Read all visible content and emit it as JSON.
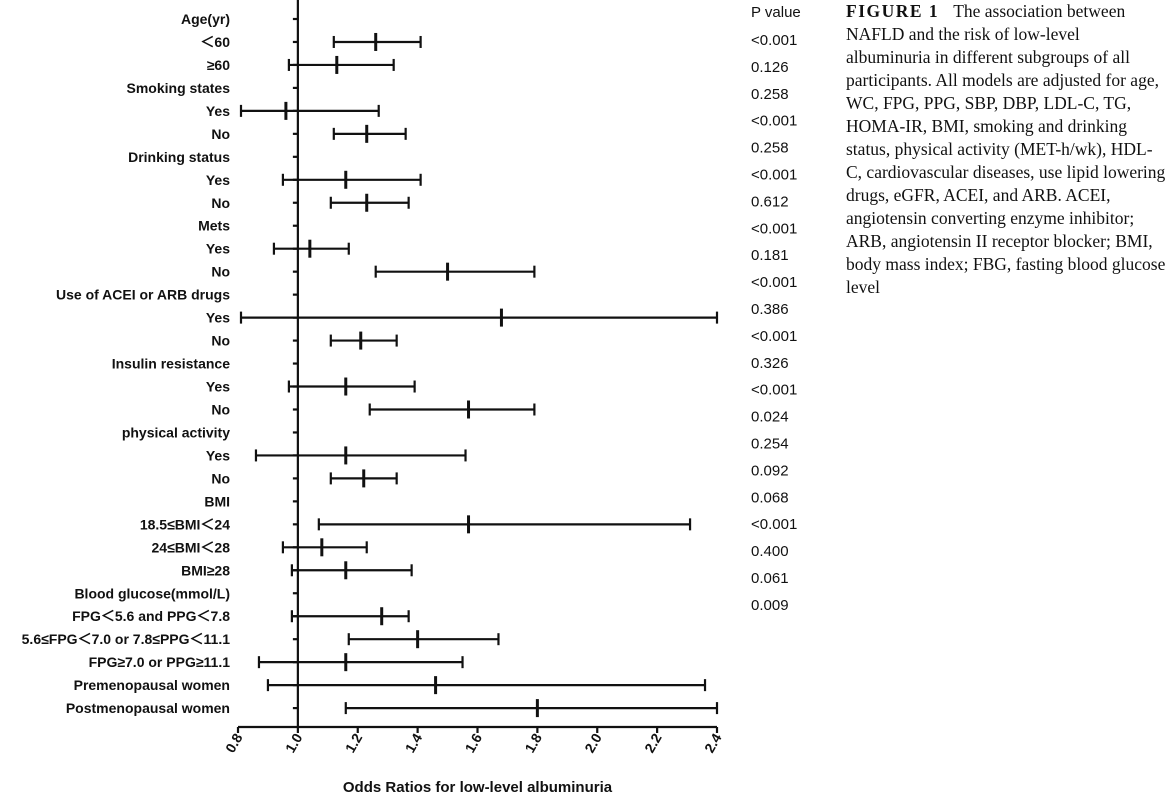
{
  "chart_data": {
    "type": "forest",
    "xlabel": "Odds Ratios for low-level albuminuria",
    "xlim": [
      0.8,
      2.4
    ],
    "xticks": [
      "0.8",
      "1.0",
      "1.2",
      "1.4",
      "1.6",
      "1.8",
      "2.0",
      "2.2",
      "2.4"
    ],
    "reference_line": 1.0,
    "pvalue_header": "P value",
    "rows": [
      {
        "label": "Age(yr)",
        "header": true
      },
      {
        "label": "＜60",
        "or": 1.26,
        "lo": 1.12,
        "hi": 1.41
      },
      {
        "label": "≥60",
        "or": 1.13,
        "lo": 0.97,
        "hi": 1.32
      },
      {
        "label": "Smoking states",
        "header": true
      },
      {
        "label": "Yes",
        "or": 0.96,
        "lo": 0.81,
        "hi": 1.27
      },
      {
        "label": "No",
        "or": 1.23,
        "lo": 1.12,
        "hi": 1.36
      },
      {
        "label": "Drinking status",
        "header": true
      },
      {
        "label": "Yes",
        "or": 1.16,
        "lo": 0.95,
        "hi": 1.41
      },
      {
        "label": "No",
        "or": 1.23,
        "lo": 1.11,
        "hi": 1.37
      },
      {
        "label": "Mets",
        "header": true
      },
      {
        "label": "Yes",
        "or": 1.04,
        "lo": 0.92,
        "hi": 1.17
      },
      {
        "label": "No",
        "or": 1.5,
        "lo": 1.26,
        "hi": 1.79
      },
      {
        "label": "Use of ACEI or ARB drugs",
        "header": true
      },
      {
        "label": "Yes",
        "or": 1.68,
        "lo": 0.81,
        "hi": 2.4
      },
      {
        "label": "No",
        "or": 1.21,
        "lo": 1.11,
        "hi": 1.33
      },
      {
        "label": "Insulin resistance",
        "header": true
      },
      {
        "label": "Yes",
        "or": 1.16,
        "lo": 0.97,
        "hi": 1.39
      },
      {
        "label": "No",
        "or": 1.57,
        "lo": 1.24,
        "hi": 1.79
      },
      {
        "label": "physical activity",
        "header": true
      },
      {
        "label": "Yes",
        "or": 1.16,
        "lo": 0.86,
        "hi": 1.56
      },
      {
        "label": "No",
        "or": 1.22,
        "lo": 1.11,
        "hi": 1.33
      },
      {
        "label": "BMI",
        "header": true
      },
      {
        "label": "18.5≤BMI＜24",
        "or": 1.57,
        "lo": 1.07,
        "hi": 2.31
      },
      {
        "label": "24≤BMI＜28",
        "or": 1.08,
        "lo": 0.95,
        "hi": 1.23
      },
      {
        "label": "BMI≥28",
        "or": 1.16,
        "lo": 0.98,
        "hi": 1.38
      },
      {
        "label": "Blood glucose(mmol/L)",
        "header": true
      },
      {
        "label": "FPG＜5.6 and PPG＜7.8",
        "or": 1.28,
        "lo": 0.98,
        "hi": 1.37
      },
      {
        "label": "5.6≤FPG＜7.0 or 7.8≤PPG＜11.1",
        "or": 1.4,
        "lo": 1.17,
        "hi": 1.67
      },
      {
        "label": "FPG≥7.0 or PPG≥11.1",
        "or": 1.16,
        "lo": 0.87,
        "hi": 1.55
      },
      {
        "label": "Premenopausal women",
        "or": 1.46,
        "lo": 0.9,
        "hi": 2.36
      },
      {
        "label": "Postmenopausal women",
        "or": 1.8,
        "lo": 1.16,
        "hi": 2.4
      }
    ],
    "pvalues": [
      "<0.001",
      "0.126",
      "0.258",
      "<0.001",
      "0.258",
      "<0.001",
      "0.612",
      "<0.001",
      "0.181",
      "<0.001",
      "0.386",
      "<0.001",
      "0.326",
      "<0.001",
      "0.024",
      "0.254",
      "0.092",
      "0.068",
      "<0.001",
      "0.400",
      "0.061",
      "0.009"
    ]
  },
  "caption": {
    "label": "FIGURE 1",
    "text": "The association between NAFLD and the risk of low-level albuminuria in different subgroups of all participants. All models are adjusted for age, WC, FPG, PPG, SBP, DBP, LDL-C, TG, HOMA-IR, BMI, smoking and drinking status, physical activity (MET-h/wk), HDL-C, cardiovascular diseases, use lipid lowering drugs, eGFR, ACEI, and ARB. ACEI, angiotensin converting enzyme inhibitor; ARB, angiotensin II receptor blocker; BMI, body mass index; FBG, fasting blood glucose level"
  }
}
